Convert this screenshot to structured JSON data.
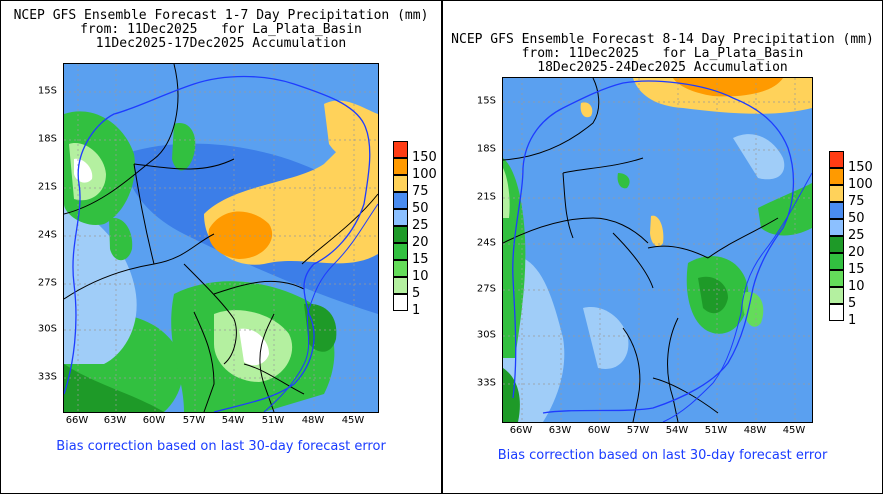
{
  "panels": [
    {
      "id": "week1",
      "title_lines": [
        "NCEP GFS Ensemble Forecast 1-7 Day Precipitation (mm)",
        "from: 11Dec2025   for La_Plata_Basin",
        "11Dec2025-17Dec2025 Accumulation"
      ],
      "lat_ticks": [
        "15S",
        "18S",
        "21S",
        "24S",
        "27S",
        "30S",
        "33S"
      ],
      "lon_ticks": [
        "66W",
        "63W",
        "60W",
        "57W",
        "54W",
        "51W",
        "48W",
        "45W"
      ],
      "footnote": "Bias correction based on last 30-day forecast error"
    },
    {
      "id": "week2",
      "title_lines": [
        "NCEP GFS Ensemble Forecast 8-14 Day Precipitation (mm)",
        "from: 11Dec2025   for La_Plata_Basin",
        "18Dec2025-24Dec2025 Accumulation"
      ],
      "lat_ticks": [
        "15S",
        "18S",
        "21S",
        "24S",
        "27S",
        "30S",
        "33S"
      ],
      "lon_ticks": [
        "66W",
        "63W",
        "60W",
        "57W",
        "54W",
        "51W",
        "48W",
        "45W"
      ],
      "footnote": "Bias correction based on last 30-day forecast error"
    }
  ],
  "legend": [
    {
      "label": "150",
      "color": "#ff3c14"
    },
    {
      "label": "100",
      "color": "#ff9a00"
    },
    {
      "label": "75",
      "color": "#ffd25a"
    },
    {
      "label": "50",
      "color": "#4a8cf0"
    },
    {
      "label": "25",
      "color": "#8cc0ff"
    },
    {
      "label": "20",
      "color": "#1e9a28"
    },
    {
      "label": "15",
      "color": "#32c040"
    },
    {
      "label": "10",
      "color": "#64dc5a"
    },
    {
      "label": "5",
      "color": "#b4f0a0"
    },
    {
      "label": "1",
      "color": "#ffffff"
    }
  ],
  "colors": {
    "base_blue": "#5aa0f0",
    "light_blue": "#a0cdf8",
    "border_black": "#000000",
    "basin_blue": "#1e3cff",
    "grid_gray": "#999999",
    "footnote_blue": "#1a3cff"
  }
}
